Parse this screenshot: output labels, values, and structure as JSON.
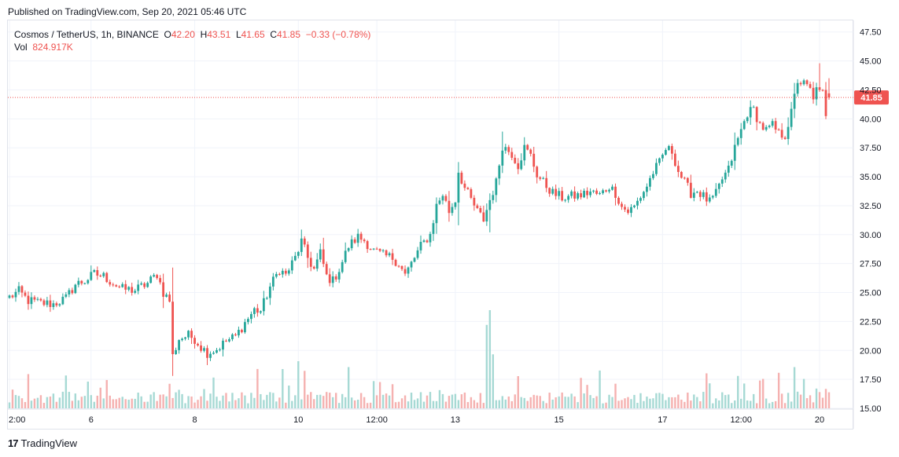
{
  "header": {
    "published": "Published on TradingView.com, Sep 20, 2021 05:46 UTC"
  },
  "legend": {
    "symbol": "Cosmos / TetherUS, 1h, BINANCE",
    "o_label": "O",
    "o_value": "42.20",
    "h_label": "H",
    "h_value": "43.51",
    "l_label": "L",
    "l_value": "41.65",
    "c_label": "C",
    "c_value": "41.85",
    "change": "−0.33 (−0.78%)",
    "vol_label": "Vol",
    "vol_value": "824.917K"
  },
  "footer": {
    "logo_mark": "17",
    "logo_text": "TradingView"
  },
  "colors": {
    "up": "#26a69a",
    "down": "#ef5350",
    "up_volume": "#a6d9d4",
    "down_volume": "#f5b1b0",
    "grid": "#f0f3fa",
    "price_line": "#ef5350"
  },
  "chart_data": {
    "type": "candlestick",
    "symbol": "Cosmos / TetherUS",
    "interval": "1h",
    "exchange": "BINANCE",
    "current_price": 41.85,
    "current_price_label": "41.85",
    "ylim": [
      15.0,
      48.5
    ],
    "y_ticks": [
      "47.50",
      "45.00",
      "42.50",
      "40.00",
      "37.50",
      "35.00",
      "32.50",
      "30.00",
      "27.50",
      "25.00",
      "22.50",
      "20.00",
      "17.50",
      "15.00"
    ],
    "x_ticks": [
      {
        "label": "2:00",
        "index": 0
      },
      {
        "label": "6",
        "index": 26
      },
      {
        "label": "8",
        "index": 59
      },
      {
        "label": "10",
        "index": 92
      },
      {
        "label": "12:00",
        "index": 117
      },
      {
        "label": "13",
        "index": 142
      },
      {
        "label": "15",
        "index": 175
      },
      {
        "label": "17",
        "index": 208
      },
      {
        "label": "12:00",
        "index": 233
      },
      {
        "label": "20",
        "index": 258
      }
    ],
    "price_anchors": [
      [
        0,
        24.6
      ],
      [
        3,
        25.1
      ],
      [
        6,
        24.3
      ],
      [
        10,
        24.1
      ],
      [
        14,
        24.0
      ],
      [
        18,
        24.5
      ],
      [
        21,
        25.7
      ],
      [
        24,
        26.0
      ],
      [
        27,
        26.6
      ],
      [
        30,
        26.4
      ],
      [
        33,
        25.8
      ],
      [
        36,
        25.3
      ],
      [
        40,
        25.2
      ],
      [
        44,
        25.8
      ],
      [
        47,
        26.6
      ],
      [
        49,
        25.0
      ],
      [
        51,
        24.3
      ],
      [
        52,
        19.5
      ],
      [
        54,
        21.0
      ],
      [
        57,
        21.3
      ],
      [
        59,
        21.0
      ],
      [
        61,
        20.3
      ],
      [
        63,
        19.8
      ],
      [
        66,
        20.1
      ],
      [
        69,
        20.8
      ],
      [
        72,
        21.2
      ],
      [
        75,
        22.4
      ],
      [
        78,
        23.5
      ],
      [
        80,
        23.4
      ],
      [
        83,
        25.5
      ],
      [
        86,
        27.0
      ],
      [
        88,
        26.5
      ],
      [
        91,
        28.0
      ],
      [
        93,
        29.4
      ],
      [
        95,
        28.0
      ],
      [
        97,
        27.0
      ],
      [
        99,
        28.4
      ],
      [
        101,
        26.4
      ],
      [
        103,
        26.0
      ],
      [
        105,
        27.0
      ],
      [
        108,
        29.0
      ],
      [
        111,
        29.8
      ],
      [
        113,
        29.5
      ],
      [
        116,
        28.6
      ],
      [
        119,
        28.2
      ],
      [
        122,
        28.0
      ],
      [
        124,
        27.5
      ],
      [
        126,
        26.5
      ],
      [
        128,
        27.5
      ],
      [
        131,
        29.0
      ],
      [
        134,
        30.0
      ],
      [
        136,
        32.5
      ],
      [
        138,
        33.5
      ],
      [
        140,
        32.0
      ],
      [
        142,
        33.0
      ],
      [
        143,
        35.5
      ],
      [
        145,
        34.0
      ],
      [
        147,
        33.0
      ],
      [
        149,
        32.0
      ],
      [
        151,
        31.3
      ],
      [
        153,
        33.0
      ],
      [
        155,
        34.5
      ],
      [
        157,
        37.7
      ],
      [
        160,
        37.0
      ],
      [
        162,
        36.0
      ],
      [
        164,
        37.5
      ],
      [
        166,
        36.8
      ],
      [
        168,
        35.2
      ],
      [
        170,
        34.5
      ],
      [
        173,
        33.6
      ],
      [
        176,
        33.2
      ],
      [
        179,
        33.3
      ],
      [
        182,
        33.4
      ],
      [
        185,
        33.7
      ],
      [
        188,
        33.4
      ],
      [
        191,
        34.2
      ],
      [
        193,
        33.6
      ],
      [
        195,
        32.4
      ],
      [
        197,
        32.0
      ],
      [
        199,
        32.4
      ],
      [
        201,
        33.3
      ],
      [
        203,
        34.2
      ],
      [
        205,
        35.4
      ],
      [
        207,
        36.2
      ],
      [
        209,
        37.4
      ],
      [
        211,
        37.2
      ],
      [
        213,
        35.5
      ],
      [
        215,
        34.5
      ],
      [
        217,
        33.6
      ],
      [
        219,
        33.8
      ],
      [
        221,
        33.3
      ],
      [
        223,
        32.8
      ],
      [
        225,
        33.5
      ],
      [
        227,
        34.8
      ],
      [
        229,
        35.6
      ],
      [
        231,
        37.5
      ],
      [
        233,
        39.0
      ],
      [
        235,
        40.5
      ],
      [
        237,
        40.8
      ],
      [
        239,
        39.5
      ],
      [
        241,
        39.0
      ],
      [
        243,
        39.4
      ],
      [
        245,
        38.7
      ],
      [
        247,
        38.6
      ],
      [
        249,
        40.5
      ],
      [
        251,
        43.3
      ],
      [
        253,
        43.0
      ],
      [
        255,
        42.5
      ],
      [
        256,
        41.5
      ],
      [
        257,
        43.0
      ],
      [
        258,
        42.2
      ],
      [
        259,
        42.2
      ],
      [
        260,
        40.0
      ],
      [
        261,
        41.85
      ]
    ],
    "notable_volume_bars": [
      {
        "index": 152,
        "relative": 0.85
      },
      {
        "index": 153,
        "relative": 1.0
      },
      {
        "index": 154,
        "relative": 0.55
      },
      {
        "index": 108,
        "relative": 0.42
      },
      {
        "index": 92,
        "relative": 0.48
      },
      {
        "index": 87,
        "relative": 0.4
      },
      {
        "index": 51,
        "relative": 0.25
      },
      {
        "index": 232,
        "relative": 0.33
      },
      {
        "index": 250,
        "relative": 0.42
      },
      {
        "index": 240,
        "relative": 0.3
      }
    ],
    "total_bars": 262,
    "last_bar": {
      "open": 42.2,
      "high": 43.51,
      "low": 41.65,
      "close": 41.85,
      "change": -0.33,
      "change_pct": -0.78,
      "volume": "824.917K"
    }
  }
}
